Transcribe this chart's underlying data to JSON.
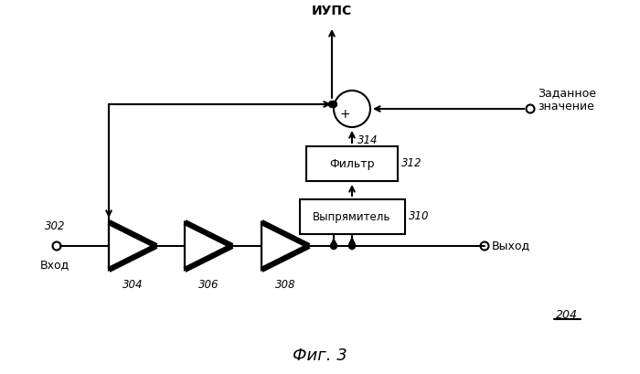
{
  "title": "Фиг. 3",
  "label_iups": "ИУПС",
  "label_vhod": "Вход",
  "label_vyhod": "Выход",
  "label_zadannoe": "Заданное\nзначение",
  "label_filtr": "Фильтр",
  "label_vypryamitel": "Выпрямитель",
  "label_204": "204",
  "label_302": "302",
  "label_304": "304",
  "label_306": "306",
  "label_308": "308",
  "label_310": "310",
  "label_312": "312",
  "label_314": "314",
  "bg_color": "#ffffff",
  "line_color": "#000000",
  "box_facecolor": "#ffffff",
  "box_edgecolor": "#000000"
}
